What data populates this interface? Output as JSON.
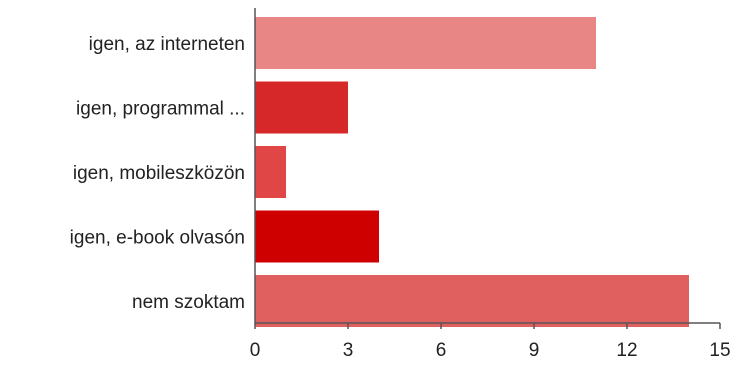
{
  "chart_data": {
    "type": "bar",
    "orientation": "horizontal",
    "categories": [
      "igen, az interneten",
      "igen, programmal ...",
      "igen, mobileszközön",
      "igen, e-book olvasón",
      "nem szoktam"
    ],
    "values": [
      11,
      3,
      1,
      4,
      14
    ],
    "colors": [
      "#e88686",
      "#d62828",
      "#e04646",
      "#cf0000",
      "#e06060"
    ],
    "xlim": [
      0,
      15
    ],
    "xticks": [
      "0",
      "3",
      "6",
      "9",
      "12",
      "15"
    ],
    "grid": false,
    "legend": false,
    "title": "",
    "xlabel": "",
    "ylabel": ""
  }
}
